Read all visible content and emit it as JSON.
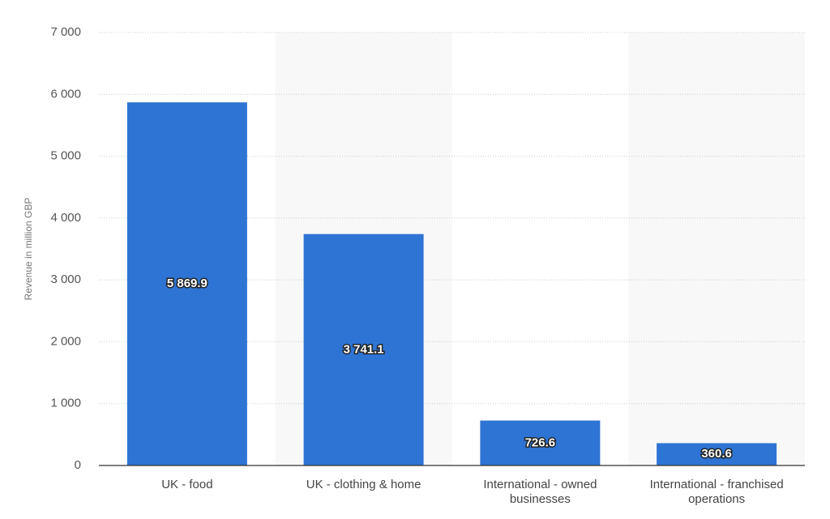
{
  "chart_data": {
    "type": "bar",
    "y_label": "Revenue in million GBP",
    "categories": [
      "UK - food",
      "UK - clothing & home",
      "International - owned businesses",
      "International - franchised operations"
    ],
    "values": [
      5869.9,
      3741.1,
      726.6,
      360.6
    ],
    "value_labels": [
      "5 869.9",
      "3 741.1",
      "726.6",
      "360.6"
    ],
    "color": "#2e74d4",
    "ylim": [
      0,
      7000
    ],
    "yticks": [
      0,
      {
        "value": 1000,
        "label": "1 000"
      },
      {
        "value": 2000,
        "label": "2 000"
      },
      {
        "value": 3000,
        "label": "3 000"
      },
      {
        "value": 4000,
        "label": "4 000"
      },
      {
        "value": 5000,
        "label": "5 000"
      },
      {
        "value": 6000,
        "label": "6 000"
      },
      {
        "value": 7000,
        "label": "7 000"
      }
    ],
    "grid": true
  }
}
